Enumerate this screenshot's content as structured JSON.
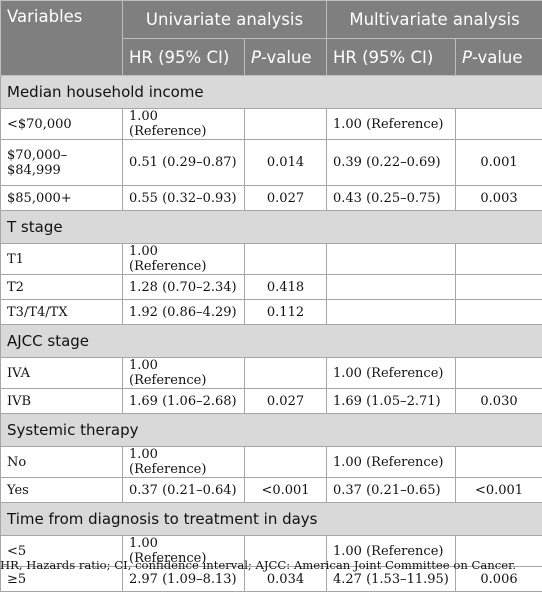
{
  "header": {
    "variables": "Variables",
    "univariate": "Univariate analysis",
    "multivariate": "Multivariate analysis",
    "hr_ci": "HR (95% CI)",
    "p_italic": "P",
    "p_suffix": "-value"
  },
  "sections": [
    {
      "title": "Median household income",
      "rows": [
        {
          "variable": "<$70,000",
          "uni_hr": "1.00 (Reference)",
          "uni_p": "",
          "multi_hr": "1.00 (Reference)",
          "multi_p": ""
        },
        {
          "variable": "$70,000–$84,999",
          "uni_hr": "0.51 (0.29–0.87)",
          "uni_p": "0.014",
          "multi_hr": "0.39 (0.22–0.69)",
          "multi_p": "0.001"
        },
        {
          "variable": "$85,000+",
          "uni_hr": "0.55 (0.32–0.93)",
          "uni_p": "0.027",
          "multi_hr": "0.43 (0.25–0.75)",
          "multi_p": "0.003"
        }
      ]
    },
    {
      "title": "T stage",
      "rows": [
        {
          "variable": "T1",
          "uni_hr": "1.00 (Reference)",
          "uni_p": "",
          "multi_hr": "",
          "multi_p": ""
        },
        {
          "variable": "T2",
          "uni_hr": "1.28 (0.70–2.34)",
          "uni_p": "0.418",
          "multi_hr": "",
          "multi_p": ""
        },
        {
          "variable": "T3/T4/TX",
          "uni_hr": "1.92 (0.86–4.29)",
          "uni_p": "0.112",
          "multi_hr": "",
          "multi_p": ""
        }
      ]
    },
    {
      "title": "AJCC stage",
      "rows": [
        {
          "variable": "IVA",
          "uni_hr": "1.00 (Reference)",
          "uni_p": "",
          "multi_hr": "1.00 (Reference)",
          "multi_p": ""
        },
        {
          "variable": "IVB",
          "uni_hr": "1.69 (1.06–2.68)",
          "uni_p": "0.027",
          "multi_hr": "1.69 (1.05–2.71)",
          "multi_p": "0.030"
        }
      ]
    },
    {
      "title": "Systemic therapy",
      "rows": [
        {
          "variable": "No",
          "uni_hr": "1.00 (Reference)",
          "uni_p": "",
          "multi_hr": "1.00 (Reference)",
          "multi_p": ""
        },
        {
          "variable": "Yes",
          "uni_hr": "0.37 (0.21–0.64)",
          "uni_p": "<0.001",
          "multi_hr": "0.37 (0.21–0.65)",
          "multi_p": "<0.001"
        }
      ]
    },
    {
      "title": "Time from diagnosis to treatment in days",
      "rows": [
        {
          "variable": "<5",
          "uni_hr": "1.00 (Reference)",
          "uni_p": "",
          "multi_hr": "1.00 (Reference)",
          "multi_p": ""
        },
        {
          "variable": "≥5",
          "uni_hr": "2.97 (1.09–8.13)",
          "uni_p": "0.034",
          "multi_hr": "4.27 (1.53–11.95)",
          "multi_p": "0.006"
        }
      ]
    }
  ],
  "footnote": "HR, Hazards ratio; CI, confidence interval; AJCC: American Joint Committee on Cancer."
}
